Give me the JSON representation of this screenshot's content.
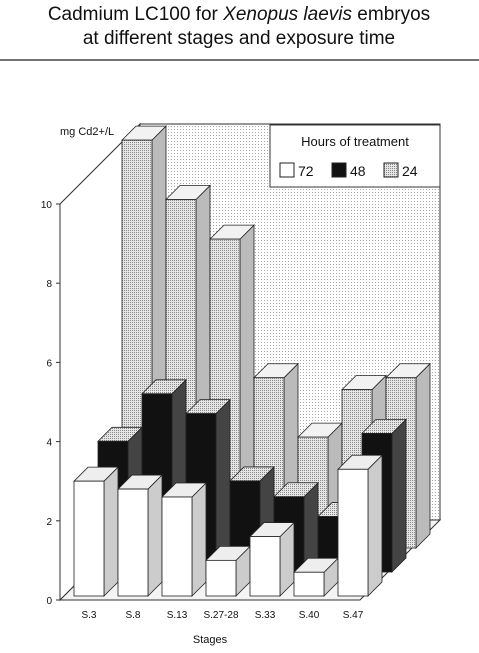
{
  "chart_data": {
    "type": "bar3d",
    "title": [
      "Cadmium  LC100 for",
      "Xenopus laevis",
      "embryos"
    ],
    "subtitle": "at different stages and exposure time",
    "y_label": "mg Cd2+/L",
    "x_label": "Stages",
    "legend_title": "Hours of treatment",
    "categories": [
      "S.3",
      "S.8",
      "S.13",
      "S.27-28",
      "S.33",
      "S.40",
      "S.47"
    ],
    "series": [
      {
        "name": "72",
        "color": "#ffffff",
        "values": [
          2.9,
          2.7,
          2.5,
          0.9,
          1.5,
          0.6,
          3.2
        ]
      },
      {
        "name": "48",
        "color": "#111111",
        "values": [
          3.3,
          4.5,
          4.0,
          2.3,
          1.9,
          1.4,
          3.5
        ]
      },
      {
        "name": "24",
        "color": "#cfcfcf",
        "values": [
          10.3,
          8.8,
          7.8,
          4.3,
          2.8,
          4.0,
          4.3
        ]
      }
    ],
    "ylim": [
      0,
      10
    ],
    "yticks": [
      0,
      2,
      4,
      6,
      8,
      10
    ],
    "grid": false,
    "legend": "top-right"
  }
}
